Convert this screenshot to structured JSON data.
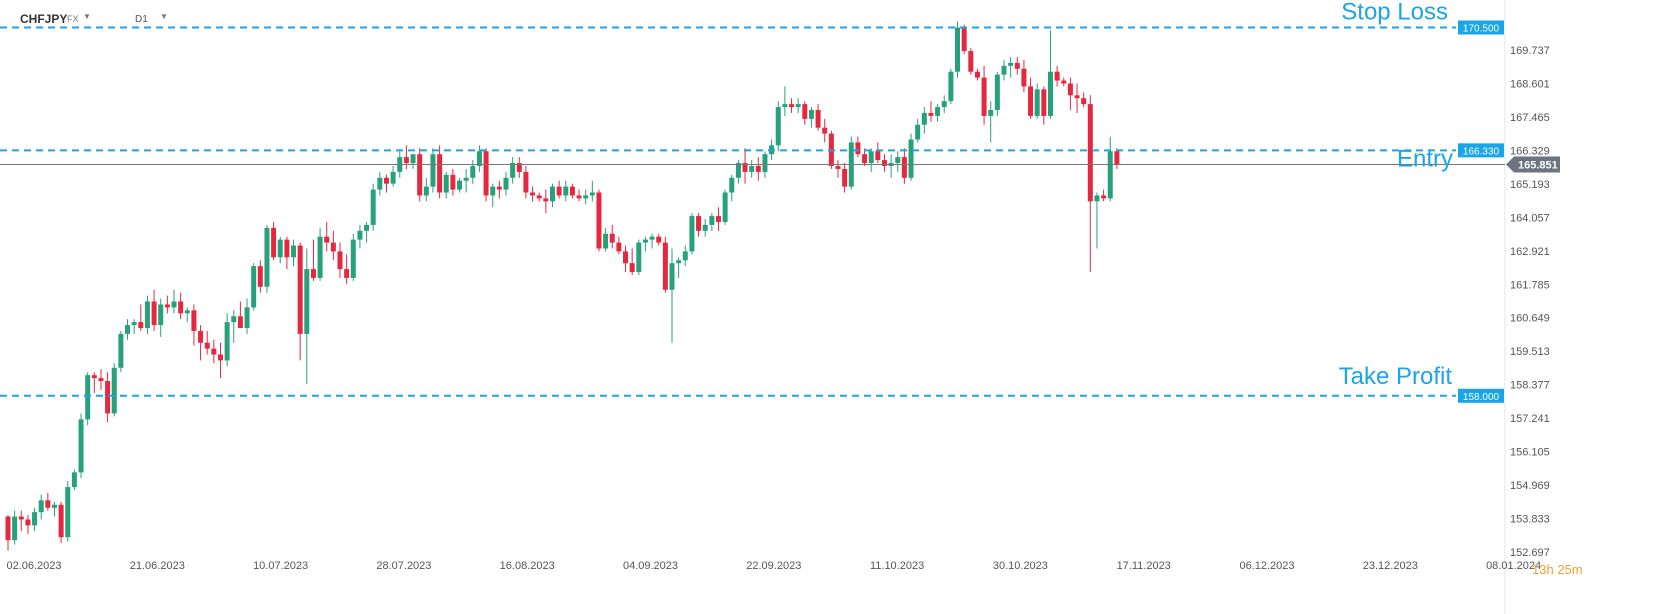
{
  "header": {
    "symbol": "CHFJPY",
    "symbol_type": "FX",
    "timeframe": "D1"
  },
  "timer": {
    "hours": "13",
    "hours_unit": "h",
    "minutes": "25",
    "minutes_unit": "m"
  },
  "colors": {
    "bull": "#26a17b",
    "bear": "#e5283f",
    "level_line": "#1aa5e6",
    "current_price_bg": "#6c757d"
  },
  "chart_data": {
    "type": "candlestick",
    "ylim": [
      152.697,
      170.873
    ],
    "y_ticks": [
      "169.737",
      "168.601",
      "167.465",
      "166.329",
      "165.193",
      "164.057",
      "162.921",
      "161.785",
      "160.649",
      "159.513",
      "158.377",
      "157.241",
      "156.105",
      "154.969",
      "153.833",
      "152.697"
    ],
    "x_ticks": [
      "02.06.2023",
      "21.06.2023",
      "10.07.2023",
      "28.07.2023",
      "16.08.2023",
      "04.09.2023",
      "22.09.2023",
      "11.10.2023",
      "30.10.2023",
      "17.11.2023",
      "06.12.2023",
      "23.12.2023",
      "08.01.2024"
    ],
    "levels": [
      {
        "label": "Stop Loss",
        "price": 170.5,
        "price_label": "170.500"
      },
      {
        "label": "Entry",
        "price": 166.33,
        "price_label": "166.330"
      },
      {
        "label": "Take Profit",
        "price": 158.0,
        "price_label": "158.000"
      }
    ],
    "current_price": 165.851,
    "current_price_label": "165.851",
    "candles": [
      [
        153.9,
        153.95,
        152.75,
        153.1
      ],
      [
        153.1,
        154.1,
        152.95,
        153.9
      ],
      [
        153.9,
        154.1,
        153.4,
        153.8
      ],
      [
        153.8,
        153.95,
        153.3,
        153.6
      ],
      [
        153.6,
        154.2,
        153.4,
        154.05
      ],
      [
        154.05,
        154.65,
        153.8,
        154.45
      ],
      [
        154.45,
        154.7,
        154.1,
        154.2
      ],
      [
        154.2,
        154.4,
        153.9,
        154.3
      ],
      [
        154.3,
        154.4,
        153.0,
        153.2
      ],
      [
        153.2,
        155.1,
        153.05,
        154.9
      ],
      [
        154.9,
        155.5,
        154.8,
        155.4
      ],
      [
        155.4,
        157.4,
        155.2,
        157.2
      ],
      [
        157.2,
        158.8,
        157.0,
        158.7
      ],
      [
        158.7,
        158.8,
        158.1,
        158.6
      ],
      [
        158.6,
        158.9,
        158.2,
        158.5
      ],
      [
        158.5,
        158.8,
        157.1,
        157.4
      ],
      [
        157.4,
        159.1,
        157.3,
        158.95
      ],
      [
        158.95,
        160.2,
        158.8,
        160.1
      ],
      [
        160.1,
        160.6,
        159.9,
        160.4
      ],
      [
        160.4,
        160.6,
        160.1,
        160.5
      ],
      [
        160.5,
        161.1,
        160.2,
        160.3
      ],
      [
        160.3,
        161.4,
        160.1,
        161.2
      ],
      [
        161.2,
        161.6,
        160.2,
        160.4
      ],
      [
        160.4,
        161.3,
        160.0,
        161.1
      ],
      [
        161.1,
        161.4,
        160.8,
        161.0
      ],
      [
        161.0,
        161.6,
        160.8,
        161.2
      ],
      [
        161.2,
        161.5,
        160.6,
        160.8
      ],
      [
        160.8,
        161.0,
        160.5,
        160.9
      ],
      [
        160.9,
        161.1,
        159.7,
        160.2
      ],
      [
        160.2,
        160.4,
        159.2,
        159.8
      ],
      [
        159.8,
        160.2,
        159.4,
        159.6
      ],
      [
        159.6,
        159.9,
        159.1,
        159.4
      ],
      [
        159.4,
        159.8,
        158.6,
        159.2
      ],
      [
        159.2,
        160.8,
        159.0,
        160.5
      ],
      [
        160.5,
        160.9,
        159.8,
        160.7
      ],
      [
        160.7,
        161.2,
        160.4,
        160.3
      ],
      [
        160.3,
        161.3,
        160.1,
        161.0
      ],
      [
        161.0,
        162.5,
        160.9,
        162.4
      ],
      [
        162.4,
        162.6,
        161.5,
        161.7
      ],
      [
        161.7,
        163.8,
        161.5,
        163.7
      ],
      [
        163.7,
        163.9,
        162.6,
        162.7
      ],
      [
        162.7,
        163.4,
        162.5,
        163.3
      ],
      [
        163.3,
        163.4,
        162.3,
        162.7
      ],
      [
        162.7,
        163.3,
        162.4,
        163.1
      ],
      [
        163.1,
        163.2,
        159.2,
        160.1
      ],
      [
        160.1,
        163.0,
        158.4,
        162.3
      ],
      [
        162.3,
        163.3,
        161.9,
        162.0
      ],
      [
        162.0,
        163.7,
        161.9,
        163.4
      ],
      [
        163.4,
        163.9,
        162.9,
        163.2
      ],
      [
        163.2,
        163.6,
        162.6,
        162.9
      ],
      [
        162.9,
        163.2,
        162.0,
        162.3
      ],
      [
        162.3,
        162.8,
        161.8,
        162.0
      ],
      [
        162.0,
        163.5,
        161.9,
        163.3
      ],
      [
        163.3,
        163.8,
        163.0,
        163.6
      ],
      [
        163.6,
        163.9,
        163.2,
        163.8
      ],
      [
        163.8,
        165.2,
        163.6,
        165.0
      ],
      [
        165.0,
        165.6,
        164.8,
        165.4
      ],
      [
        165.4,
        165.5,
        164.9,
        165.2
      ],
      [
        165.2,
        165.8,
        165.1,
        165.6
      ],
      [
        165.6,
        166.3,
        165.4,
        166.1
      ],
      [
        166.1,
        166.5,
        165.7,
        165.9
      ],
      [
        165.9,
        166.1,
        165.7,
        166.2
      ],
      [
        166.2,
        166.4,
        164.6,
        164.8
      ],
      [
        164.8,
        165.4,
        164.6,
        165.1
      ],
      [
        165.1,
        166.4,
        164.9,
        166.2
      ],
      [
        166.2,
        166.5,
        164.7,
        164.9
      ],
      [
        164.9,
        165.6,
        164.7,
        165.5
      ],
      [
        165.5,
        165.7,
        164.8,
        165.0
      ],
      [
        165.0,
        165.4,
        164.9,
        165.3
      ],
      [
        165.3,
        165.7,
        164.9,
        165.4
      ],
      [
        165.4,
        166.0,
        165.2,
        165.8
      ],
      [
        165.8,
        166.5,
        165.6,
        166.3
      ],
      [
        166.3,
        166.4,
        164.6,
        164.8
      ],
      [
        164.8,
        165.2,
        164.4,
        165.1
      ],
      [
        165.1,
        165.3,
        164.7,
        165.0
      ],
      [
        165.0,
        165.6,
        164.8,
        165.4
      ],
      [
        165.4,
        166.1,
        165.2,
        165.9
      ],
      [
        165.9,
        166.1,
        165.4,
        165.6
      ],
      [
        165.6,
        165.8,
        164.7,
        164.9
      ],
      [
        164.9,
        165.1,
        164.6,
        164.8
      ],
      [
        164.8,
        164.9,
        164.6,
        164.7
      ],
      [
        164.7,
        165.0,
        164.2,
        164.6
      ],
      [
        164.6,
        165.2,
        164.4,
        165.1
      ],
      [
        165.1,
        165.3,
        164.7,
        164.8
      ],
      [
        164.8,
        165.3,
        164.6,
        165.1
      ],
      [
        165.1,
        165.2,
        164.7,
        164.8
      ],
      [
        164.8,
        165.0,
        164.6,
        164.7
      ],
      [
        164.7,
        165.0,
        164.5,
        164.8
      ],
      [
        164.8,
        165.3,
        164.6,
        164.9
      ],
      [
        164.9,
        165.0,
        162.9,
        163.0
      ],
      [
        163.0,
        163.7,
        162.9,
        163.5
      ],
      [
        163.5,
        163.8,
        163.0,
        163.2
      ],
      [
        163.2,
        163.4,
        162.8,
        162.9
      ],
      [
        162.9,
        163.1,
        162.2,
        162.5
      ],
      [
        162.5,
        163.0,
        162.1,
        162.2
      ],
      [
        162.2,
        163.3,
        162.1,
        163.2
      ],
      [
        163.2,
        163.4,
        162.9,
        163.3
      ],
      [
        163.3,
        163.5,
        163.0,
        163.4
      ],
      [
        163.4,
        163.5,
        163.1,
        163.2
      ],
      [
        163.2,
        163.4,
        161.5,
        161.6
      ],
      [
        161.6,
        163.0,
        159.8,
        162.5
      ],
      [
        162.5,
        162.7,
        162.0,
        162.6
      ],
      [
        162.6,
        163.1,
        162.4,
        162.9
      ],
      [
        162.9,
        164.2,
        162.8,
        164.1
      ],
      [
        164.1,
        164.2,
        163.4,
        163.6
      ],
      [
        163.6,
        164.0,
        163.4,
        163.8
      ],
      [
        163.8,
        164.2,
        163.6,
        164.1
      ],
      [
        164.1,
        164.4,
        163.6,
        163.9
      ],
      [
        163.9,
        165.0,
        163.8,
        164.9
      ],
      [
        164.9,
        165.5,
        164.6,
        165.4
      ],
      [
        165.4,
        166.0,
        165.2,
        165.9
      ],
      [
        165.9,
        166.4,
        165.2,
        165.6
      ],
      [
        165.6,
        166.0,
        165.4,
        165.8
      ],
      [
        165.8,
        166.1,
        165.3,
        165.6
      ],
      [
        165.6,
        166.3,
        165.4,
        166.2
      ],
      [
        166.2,
        166.7,
        166.0,
        166.5
      ],
      [
        166.5,
        168.0,
        166.3,
        167.8
      ],
      [
        167.8,
        168.5,
        167.5,
        167.9
      ],
      [
        167.9,
        168.1,
        167.6,
        167.8
      ],
      [
        167.8,
        168.1,
        167.6,
        167.9
      ],
      [
        167.9,
        168.0,
        167.2,
        167.4
      ],
      [
        167.4,
        167.8,
        167.1,
        167.7
      ],
      [
        167.7,
        167.9,
        167.0,
        167.1
      ],
      [
        167.1,
        167.4,
        166.6,
        166.9
      ],
      [
        166.9,
        167.0,
        165.7,
        165.8
      ],
      [
        165.8,
        166.0,
        165.4,
        165.7
      ],
      [
        165.7,
        165.9,
        164.9,
        165.1
      ],
      [
        165.1,
        166.8,
        165.0,
        166.6
      ],
      [
        166.6,
        166.8,
        166.1,
        166.2
      ],
      [
        166.2,
        166.4,
        165.8,
        165.9
      ],
      [
        165.9,
        166.4,
        165.6,
        166.3
      ],
      [
        166.3,
        166.6,
        165.9,
        166.0
      ],
      [
        166.0,
        166.2,
        165.6,
        165.8
      ],
      [
        165.8,
        166.2,
        165.4,
        165.9
      ],
      [
        165.9,
        166.3,
        165.6,
        166.1
      ],
      [
        166.1,
        166.4,
        165.2,
        165.4
      ],
      [
        165.4,
        166.9,
        165.3,
        166.7
      ],
      [
        166.7,
        167.4,
        166.6,
        167.2
      ],
      [
        167.2,
        167.8,
        166.9,
        167.6
      ],
      [
        167.6,
        168.0,
        167.3,
        167.5
      ],
      [
        167.5,
        167.9,
        167.3,
        167.8
      ],
      [
        167.8,
        168.2,
        167.6,
        168.0
      ],
      [
        168.0,
        169.1,
        167.9,
        169.0
      ],
      [
        169.0,
        170.7,
        168.8,
        170.5
      ],
      [
        170.5,
        170.6,
        169.6,
        169.7
      ],
      [
        169.7,
        169.8,
        168.9,
        169.0
      ],
      [
        169.0,
        169.1,
        168.7,
        168.8
      ],
      [
        168.8,
        169.2,
        167.2,
        167.5
      ],
      [
        167.5,
        168.0,
        166.6,
        167.7
      ],
      [
        167.7,
        169.0,
        167.5,
        168.9
      ],
      [
        168.9,
        169.4,
        168.7,
        169.2
      ],
      [
        169.2,
        169.5,
        168.8,
        169.3
      ],
      [
        169.3,
        169.5,
        168.9,
        169.1
      ],
      [
        169.1,
        169.4,
        168.3,
        168.5
      ],
      [
        168.5,
        168.8,
        167.4,
        167.5
      ],
      [
        167.5,
        168.6,
        167.4,
        168.4
      ],
      [
        168.4,
        168.5,
        167.2,
        167.5
      ],
      [
        167.5,
        170.4,
        167.4,
        169.0
      ],
      [
        169.0,
        169.2,
        168.5,
        168.7
      ],
      [
        168.7,
        168.8,
        168.5,
        168.6
      ],
      [
        168.6,
        168.8,
        167.7,
        168.2
      ],
      [
        168.2,
        168.6,
        167.6,
        168.1
      ],
      [
        168.1,
        168.3,
        167.8,
        167.9
      ],
      [
        167.9,
        168.2,
        162.2,
        164.6
      ],
      [
        164.6,
        164.9,
        163.0,
        164.8
      ],
      [
        164.8,
        165.0,
        164.6,
        164.7
      ],
      [
        164.7,
        166.8,
        164.6,
        166.3
      ],
      [
        166.3,
        166.4,
        165.7,
        165.85
      ]
    ]
  }
}
